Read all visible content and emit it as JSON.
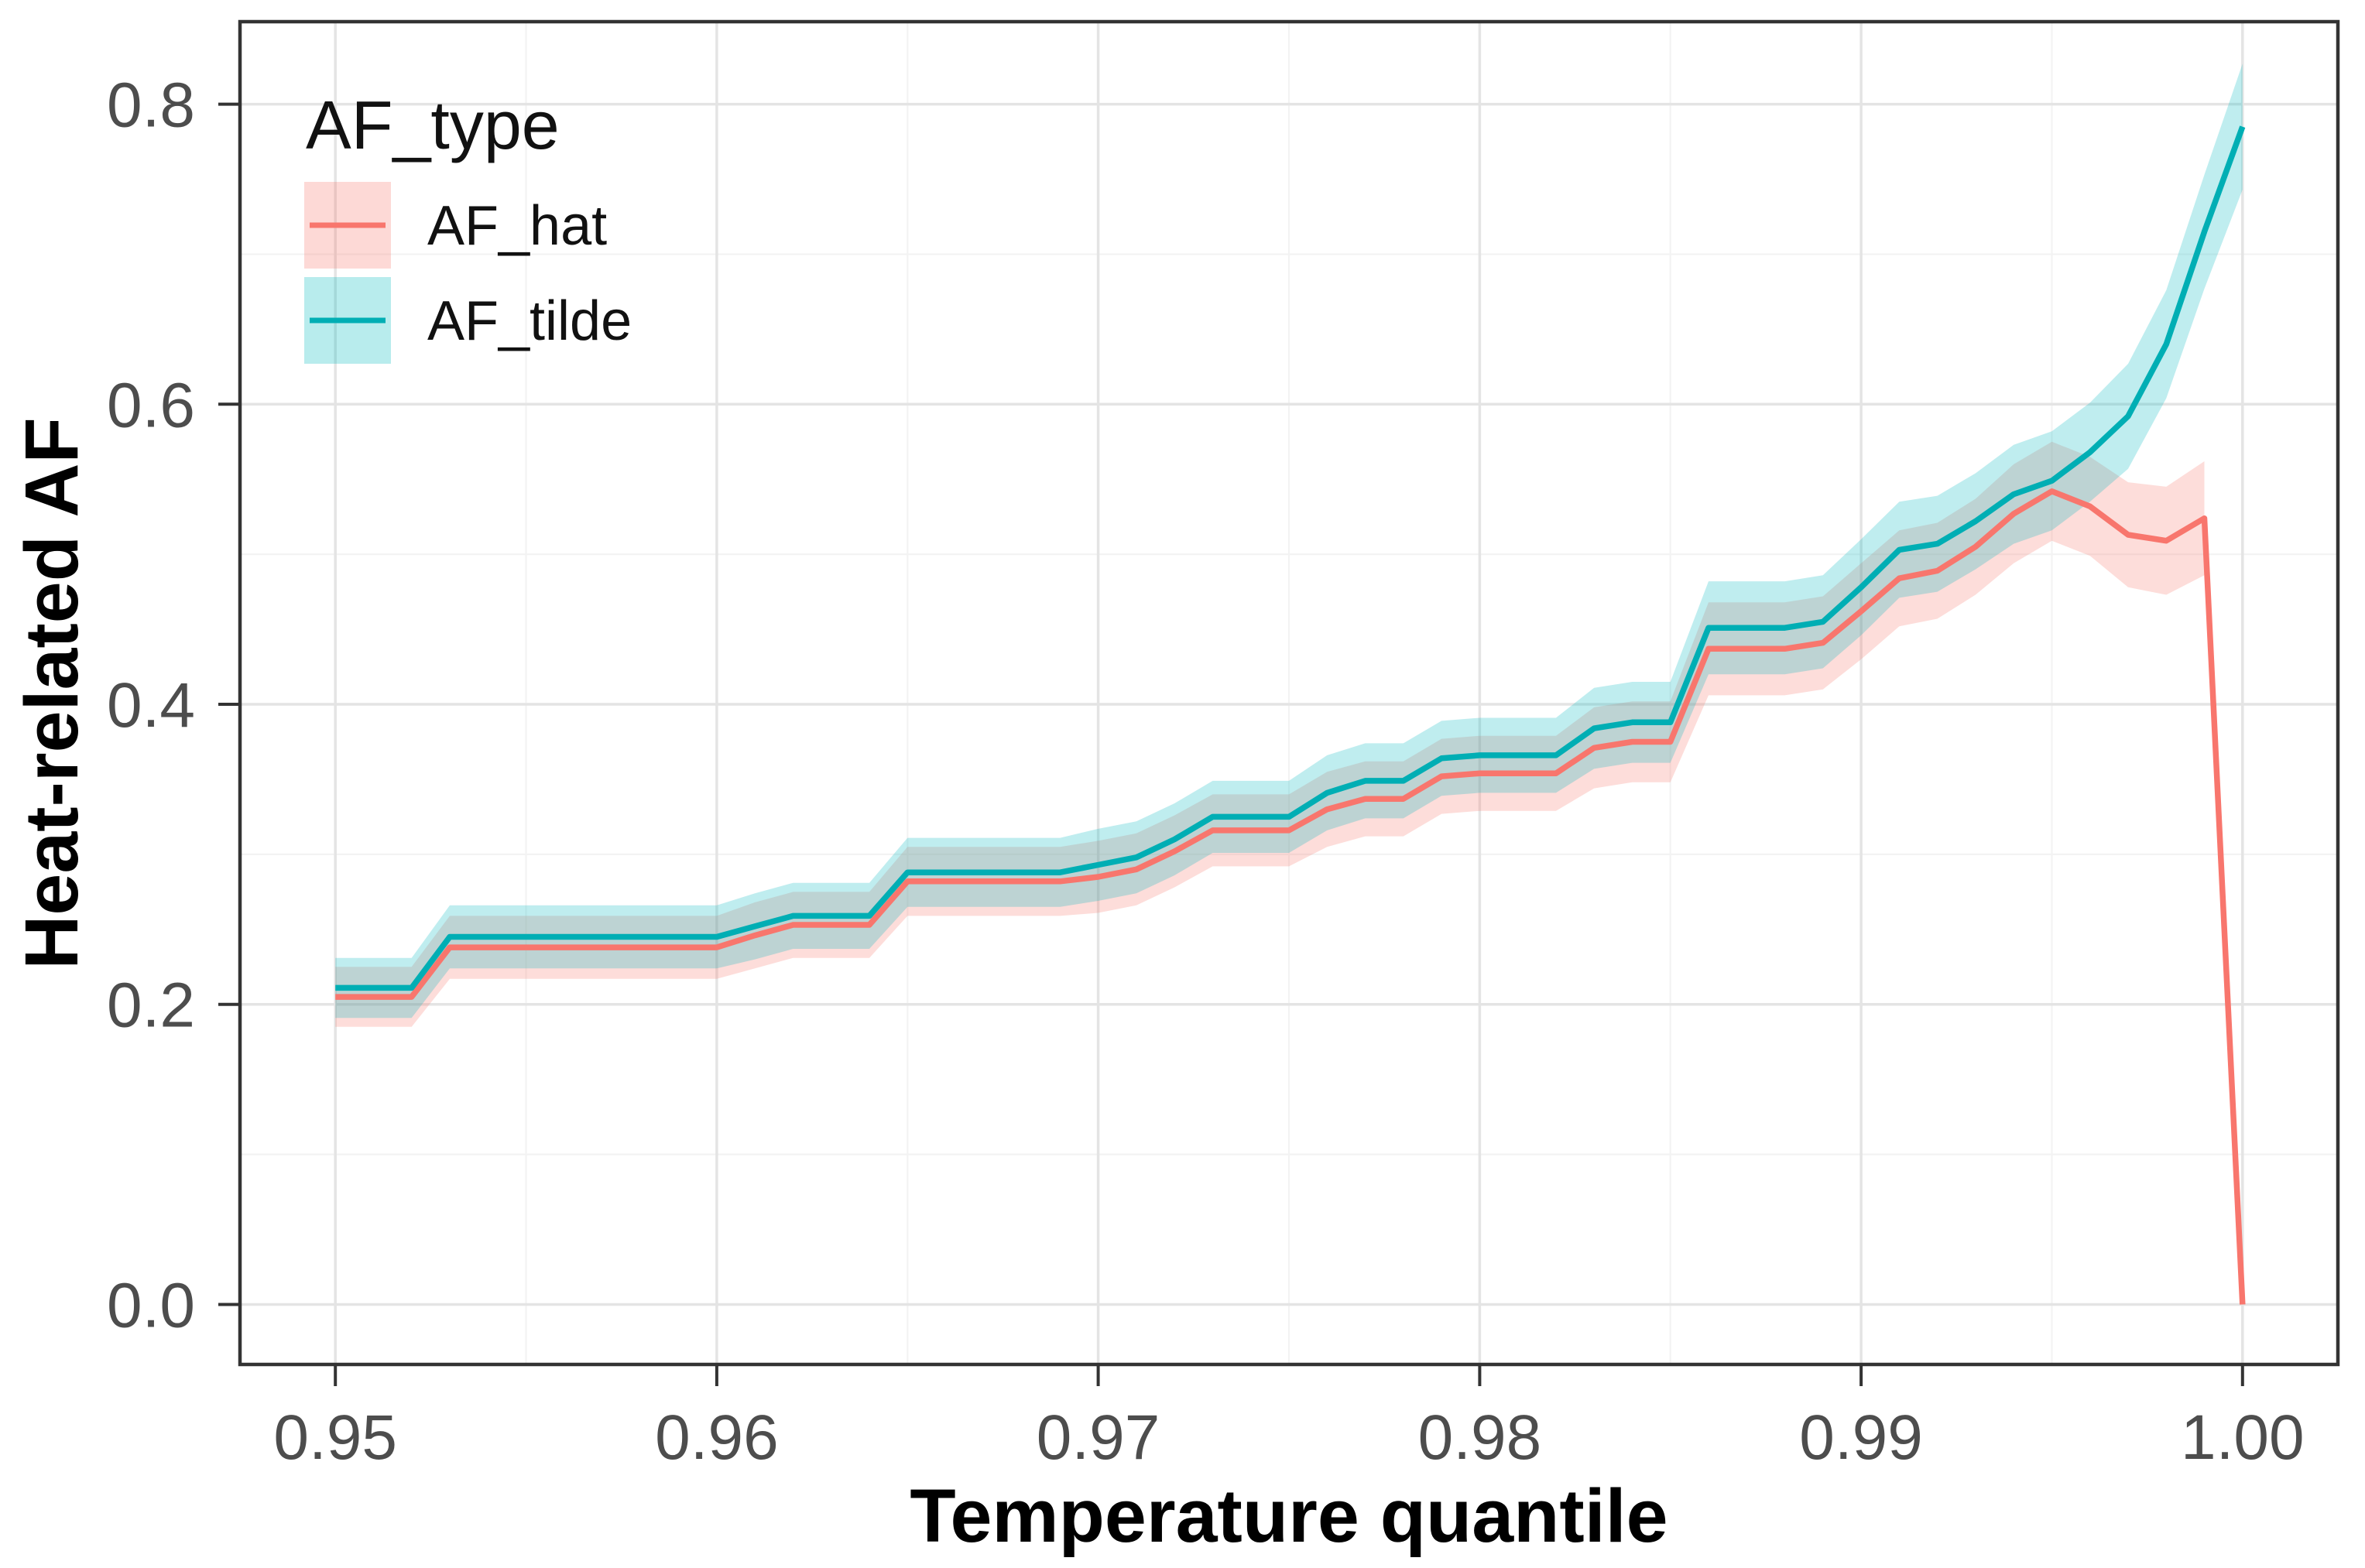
{
  "chart_data": {
    "type": "line",
    "title": "",
    "xlabel": "Temperature quantile",
    "ylabel": "Heat-related AF",
    "legend_title": "AF_type",
    "legend_position": "inside-top-left",
    "grid": "major+minor",
    "x_range": [
      0.9475,
      1.0025
    ],
    "y_range": [
      -0.04,
      0.855
    ],
    "x_ticks": [
      0.95,
      0.96,
      0.97,
      0.98,
      0.99,
      1.0
    ],
    "x_tick_labels": [
      "0.95",
      "0.96",
      "0.97",
      "0.98",
      "0.99",
      "1.00"
    ],
    "y_ticks": [
      0.0,
      0.2,
      0.4,
      0.6,
      0.8
    ],
    "y_tick_labels": [
      "0.0",
      "0.2",
      "0.4",
      "0.6",
      "0.8"
    ],
    "x": [
      0.95,
      0.951,
      0.952,
      0.953,
      0.954,
      0.955,
      0.956,
      0.957,
      0.958,
      0.959,
      0.96,
      0.961,
      0.962,
      0.963,
      0.964,
      0.965,
      0.966,
      0.967,
      0.968,
      0.969,
      0.97,
      0.971,
      0.972,
      0.973,
      0.974,
      0.975,
      0.976,
      0.977,
      0.978,
      0.979,
      0.98,
      0.981,
      0.982,
      0.983,
      0.984,
      0.985,
      0.986,
      0.987,
      0.988,
      0.989,
      0.99,
      0.991,
      0.992,
      0.993,
      0.994,
      0.995,
      0.996,
      0.997,
      0.998,
      0.999,
      1.0
    ],
    "series": [
      {
        "name": "AF_hat",
        "color": "#F8766D",
        "ribbon_color": "rgba(248,118,109,0.25)",
        "legend_key_fill": "rgba(248,118,109,0.28)",
        "y": [
          0.205,
          0.205,
          0.205,
          0.238,
          0.238,
          0.238,
          0.238,
          0.238,
          0.238,
          0.238,
          0.238,
          0.246,
          0.253,
          0.253,
          0.253,
          0.282,
          0.282,
          0.282,
          0.282,
          0.282,
          0.285,
          0.29,
          0.302,
          0.316,
          0.316,
          0.316,
          0.33,
          0.337,
          0.337,
          0.352,
          0.354,
          0.354,
          0.354,
          0.371,
          0.375,
          0.375,
          0.437,
          0.437,
          0.437,
          0.441,
          0.462,
          0.484,
          0.489,
          0.505,
          0.527,
          0.542,
          0.532,
          0.513,
          0.509,
          0.524,
          0.0
        ],
        "band": [
          0.02,
          0.02,
          0.02,
          0.021,
          0.021,
          0.021,
          0.021,
          0.021,
          0.021,
          0.021,
          0.021,
          0.022,
          0.022,
          0.022,
          0.022,
          0.023,
          0.023,
          0.023,
          0.023,
          0.023,
          0.024,
          0.024,
          0.024,
          0.024,
          0.024,
          0.024,
          0.025,
          0.025,
          0.025,
          0.025,
          0.025,
          0.025,
          0.025,
          0.027,
          0.027,
          0.027,
          0.031,
          0.031,
          0.031,
          0.031,
          0.032,
          0.032,
          0.032,
          0.032,
          0.033,
          0.033,
          0.033,
          0.035,
          0.036,
          0.038,
          0.042
        ],
        "band_end": 0.999
      },
      {
        "name": "AF_tilde",
        "color": "#00AEB4",
        "ribbon_color": "rgba(0,185,190,0.25)",
        "legend_key_fill": "rgba(0,187,192,0.28)",
        "y": [
          0.211,
          0.211,
          0.211,
          0.245,
          0.245,
          0.245,
          0.245,
          0.245,
          0.245,
          0.245,
          0.245,
          0.252,
          0.259,
          0.259,
          0.259,
          0.288,
          0.288,
          0.288,
          0.288,
          0.288,
          0.293,
          0.298,
          0.31,
          0.325,
          0.325,
          0.325,
          0.341,
          0.349,
          0.349,
          0.364,
          0.366,
          0.366,
          0.366,
          0.384,
          0.388,
          0.388,
          0.451,
          0.451,
          0.451,
          0.455,
          0.478,
          0.503,
          0.507,
          0.522,
          0.54,
          0.549,
          0.568,
          0.592,
          0.64,
          0.715,
          0.785
        ],
        "band": [
          0.02,
          0.02,
          0.02,
          0.021,
          0.021,
          0.021,
          0.021,
          0.021,
          0.021,
          0.021,
          0.021,
          0.022,
          0.022,
          0.022,
          0.022,
          0.023,
          0.023,
          0.023,
          0.023,
          0.023,
          0.024,
          0.024,
          0.024,
          0.024,
          0.024,
          0.024,
          0.025,
          0.025,
          0.025,
          0.025,
          0.025,
          0.025,
          0.025,
          0.027,
          0.027,
          0.027,
          0.031,
          0.031,
          0.031,
          0.031,
          0.032,
          0.032,
          0.032,
          0.032,
          0.033,
          0.033,
          0.033,
          0.035,
          0.036,
          0.038,
          0.042
        ],
        "band_end": 1.0
      }
    ]
  }
}
